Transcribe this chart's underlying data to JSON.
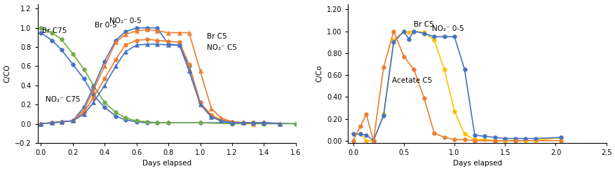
{
  "left": {
    "xlabel": "Days elapsed",
    "ylabel": "C/CO",
    "xlim": [
      -0.02,
      1.6
    ],
    "ylim": [
      -0.2,
      1.25
    ],
    "xticks": [
      0.0,
      0.2,
      0.4,
      0.6,
      0.8,
      1.0,
      1.2,
      1.4,
      1.6
    ],
    "yticks": [
      -0.2,
      0.0,
      0.2,
      0.4,
      0.6,
      0.8,
      1.0,
      1.2
    ],
    "series": [
      {
        "label": "Br C75",
        "color": "#4472c4",
        "marker": "o",
        "markersize": 4,
        "x": [
          0.0,
          0.07,
          0.13,
          0.2,
          0.27,
          0.33,
          0.4,
          0.47,
          0.53,
          0.6,
          0.67,
          0.73,
          0.8,
          1.0,
          1.2,
          1.4,
          1.6
        ],
        "y": [
          0.95,
          0.87,
          0.77,
          0.62,
          0.47,
          0.3,
          0.17,
          0.08,
          0.04,
          0.02,
          0.01,
          0.01,
          0.01,
          0.01,
          0.01,
          0.01,
          0.0
        ]
      },
      {
        "label": "NO₂⁻ C75",
        "color": "#70ad47",
        "marker": "o",
        "markersize": 4,
        "x": [
          0.0,
          0.07,
          0.13,
          0.2,
          0.27,
          0.33,
          0.4,
          0.47,
          0.53,
          0.6,
          0.67,
          0.73,
          0.8,
          1.0,
          1.2,
          1.4,
          1.6
        ],
        "y": [
          1.0,
          0.95,
          0.88,
          0.73,
          0.57,
          0.4,
          0.22,
          0.12,
          0.06,
          0.03,
          0.02,
          0.01,
          0.01,
          0.01,
          0.0,
          0.0,
          0.0
        ]
      },
      {
        "label": "Br 0-5",
        "color": "#4472c4",
        "marker": "o",
        "markersize": 4,
        "x": [
          0.0,
          0.07,
          0.13,
          0.2,
          0.27,
          0.33,
          0.4,
          0.47,
          0.53,
          0.6,
          0.67,
          0.73,
          0.8,
          0.87,
          0.93,
          1.0,
          1.07,
          1.13,
          1.2,
          1.27,
          1.33,
          1.4,
          1.5
        ],
        "y": [
          0.0,
          0.01,
          0.02,
          0.03,
          0.17,
          0.38,
          0.65,
          0.87,
          0.96,
          1.0,
          1.0,
          1.0,
          0.83,
          0.82,
          0.6,
          0.22,
          0.08,
          0.04,
          0.02,
          0.01,
          0.01,
          0.01,
          0.0
        ]
      },
      {
        "label": "NO₂⁻ 0-5",
        "color": "#ed7d31",
        "marker": "^",
        "markersize": 4,
        "x": [
          0.0,
          0.07,
          0.13,
          0.2,
          0.27,
          0.33,
          0.4,
          0.47,
          0.53,
          0.6,
          0.67,
          0.73,
          0.8,
          0.87,
          0.93,
          1.0,
          1.07,
          1.13,
          1.2,
          1.27,
          1.33
        ],
        "y": [
          0.0,
          0.01,
          0.02,
          0.03,
          0.14,
          0.35,
          0.6,
          0.85,
          0.93,
          0.97,
          0.98,
          0.97,
          0.95,
          0.95,
          0.95,
          0.55,
          0.16,
          0.06,
          0.02,
          0.01,
          0.0
        ]
      },
      {
        "label": "Br C5",
        "color": "#ed7d31",
        "marker": "o",
        "markersize": 4,
        "x": [
          0.0,
          0.07,
          0.13,
          0.2,
          0.27,
          0.33,
          0.4,
          0.47,
          0.53,
          0.6,
          0.67,
          0.73,
          0.8,
          0.87,
          0.93,
          1.0,
          1.07,
          1.13,
          1.2,
          1.27,
          1.33,
          1.4,
          1.5
        ],
        "y": [
          0.0,
          0.01,
          0.02,
          0.03,
          0.12,
          0.27,
          0.47,
          0.67,
          0.82,
          0.87,
          0.88,
          0.87,
          0.86,
          0.85,
          0.62,
          0.22,
          0.09,
          0.04,
          0.02,
          0.01,
          0.01,
          0.01,
          0.0
        ]
      },
      {
        "label": "NO₂⁻ C5",
        "color": "#4472c4",
        "marker": "^",
        "markersize": 4,
        "x": [
          0.0,
          0.07,
          0.13,
          0.2,
          0.27,
          0.33,
          0.4,
          0.47,
          0.53,
          0.6,
          0.67,
          0.73,
          0.8,
          0.87,
          0.93,
          1.0,
          1.07,
          1.13,
          1.2,
          1.27,
          1.33,
          1.4,
          1.5
        ],
        "y": [
          0.0,
          0.01,
          0.02,
          0.03,
          0.1,
          0.22,
          0.4,
          0.6,
          0.75,
          0.82,
          0.83,
          0.83,
          0.82,
          0.82,
          0.55,
          0.2,
          0.07,
          0.03,
          0.01,
          0.01,
          0.01,
          0.01,
          0.0
        ]
      }
    ]
  },
  "right": {
    "xlabel": "Days elapsed",
    "ylabel": "C/Co",
    "xlim": [
      -0.05,
      2.5
    ],
    "ylim": [
      -0.02,
      1.25
    ],
    "xticks": [
      0.0,
      0.5,
      1.0,
      1.5,
      2.0,
      2.5
    ],
    "yticks": [
      0.0,
      0.2,
      0.4,
      0.6,
      0.8,
      1.0,
      1.2
    ],
    "series": [
      {
        "label": "Br C5",
        "color": "#ffc000",
        "marker": "o",
        "markersize": 4,
        "x": [
          0.0,
          0.07,
          0.13,
          0.2,
          0.3,
          0.4,
          0.5,
          0.55,
          0.6,
          0.7,
          0.8,
          0.9,
          1.0,
          1.1,
          1.2,
          1.3,
          1.4,
          1.5,
          1.6,
          1.7,
          1.8,
          2.05
        ],
        "y": [
          0.06,
          0.06,
          0.0,
          0.0,
          0.24,
          0.92,
          1.0,
          0.99,
          1.0,
          0.99,
          0.92,
          0.65,
          0.27,
          0.06,
          0.01,
          0.01,
          0.0,
          0.0,
          0.0,
          0.0,
          0.0,
          0.03
        ]
      },
      {
        "label": "NO₂⁻ 0-5",
        "color": "#4472c4",
        "marker": "o",
        "markersize": 4,
        "x": [
          0.0,
          0.07,
          0.13,
          0.2,
          0.3,
          0.4,
          0.5,
          0.55,
          0.6,
          0.7,
          0.8,
          0.9,
          1.0,
          1.1,
          1.2,
          1.3,
          1.4,
          1.5,
          1.6,
          1.7,
          1.8,
          2.05
        ],
        "y": [
          0.06,
          0.06,
          0.05,
          0.0,
          0.23,
          0.9,
          1.0,
          0.93,
          1.0,
          0.98,
          0.95,
          0.95,
          0.95,
          0.65,
          0.05,
          0.04,
          0.03,
          0.02,
          0.02,
          0.02,
          0.02,
          0.03
        ]
      },
      {
        "label": "Acetate C5",
        "color": "#ed7d31",
        "marker": "o",
        "markersize": 4,
        "x": [
          0.0,
          0.07,
          0.13,
          0.2,
          0.3,
          0.4,
          0.5,
          0.6,
          0.7,
          0.8,
          0.9,
          1.0,
          1.1,
          1.2,
          1.4,
          1.6,
          2.05
        ],
        "y": [
          0.0,
          0.13,
          0.24,
          0.0,
          0.67,
          1.0,
          0.77,
          0.65,
          0.39,
          0.07,
          0.03,
          0.01,
          0.01,
          0.0,
          0.0,
          0.0,
          0.0
        ]
      }
    ]
  }
}
